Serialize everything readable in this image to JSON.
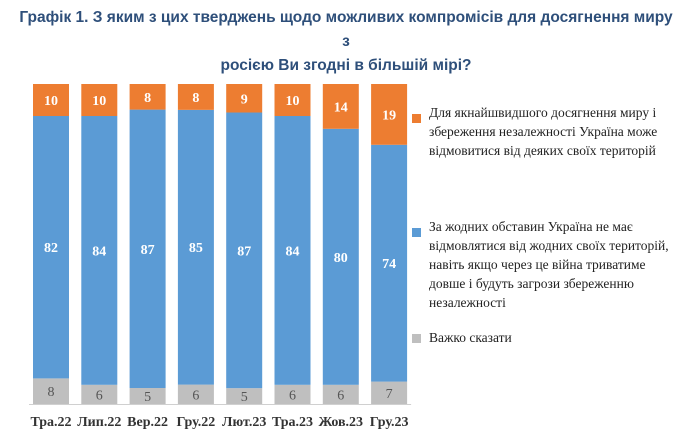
{
  "title": {
    "line1": "Графік 1. З яким з цих тверджень щодо можливих компромісів для досягнення миру з",
    "line2": "росією Ви згодні в більшій мірі?"
  },
  "colors": {
    "concede": "#ed7d31",
    "never": "#5b9bd5",
    "unsure": "#bfbfbf",
    "title": "#2e4f7a"
  },
  "legend": [
    {
      "series": "concede",
      "text": "Для якнайшвидшого досягнення миру і збереження незалежності Україна може відмовитися від деяких своїх територій"
    },
    {
      "series": "never",
      "text": "За жодних обставин Україна не має відмовлятися від жодних своїх територій, навіть якщо через це війна триватиме довше і будуть загрози збереженню незалежності"
    },
    {
      "series": "unsure",
      "text": "Важко сказати"
    }
  ],
  "chart_data": {
    "type": "bar",
    "stacked": true,
    "percent_stacked": true,
    "categories": [
      "Тра.22",
      "Лип.22",
      "Вер.22",
      "Гру.22",
      "Лют.23",
      "Тра.23",
      "Жов.23",
      "Гру.23"
    ],
    "series": [
      {
        "name": "Важко сказати",
        "key": "unsure",
        "values": [
          8,
          6,
          5,
          6,
          5,
          6,
          6,
          7
        ]
      },
      {
        "name": "За жодних обставин Україна не має відмовлятися від жодних своїх територій, навіть якщо через це війна триватиме довше і будуть загрози збереженню незалежності",
        "key": "never",
        "values": [
          82,
          84,
          87,
          85,
          87,
          84,
          80,
          74
        ]
      },
      {
        "name": "Для якнайшвидшого досягнення миру і збереження незалежності Україна може відмовитися від деяких своїх територій",
        "key": "concede",
        "values": [
          10,
          10,
          8,
          8,
          9,
          10,
          14,
          19
        ]
      }
    ],
    "data_labels": true,
    "legend_position": "right",
    "grid": false
  }
}
